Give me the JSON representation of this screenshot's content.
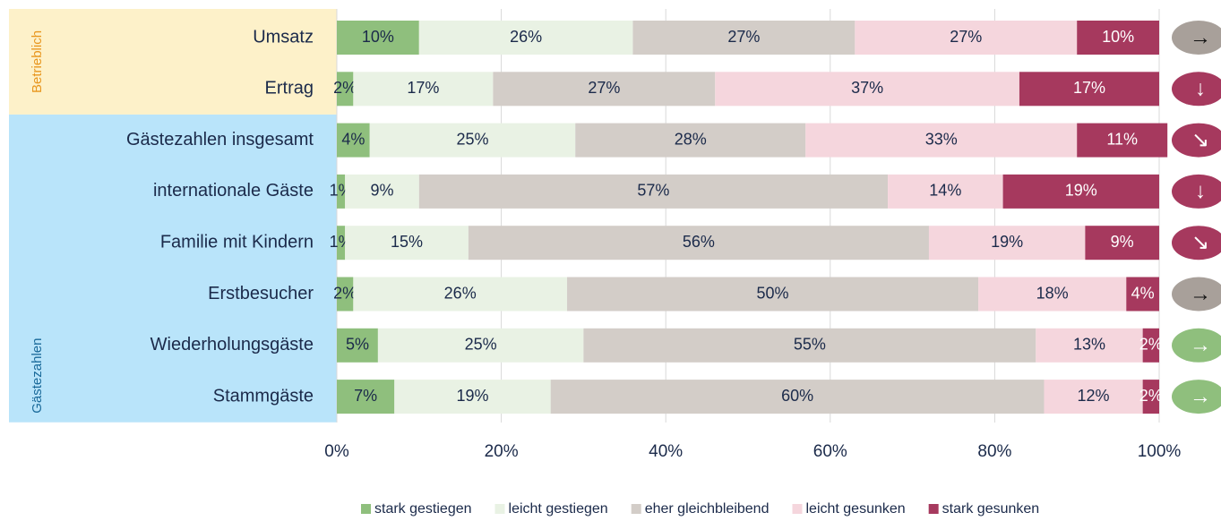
{
  "chart_data": {
    "type": "stacked_barh",
    "categories": [
      "Umsatz",
      "Ertrag",
      "Gästezahlen insgesamt",
      "internationale Gäste",
      "Familie mit Kindern",
      "Erstbesucher",
      "Wiederholungsgäste",
      "Stammgäste"
    ],
    "groups": [
      {
        "label": "Betrieblich",
        "color": "#fdf1c9",
        "text_color": "#e8961e",
        "members": [
          "Umsatz",
          "Ertrag"
        ]
      },
      {
        "label": "Gästezahlen",
        "color": "#b9e4fa",
        "text_color": "#1a6a9a",
        "members": [
          "Gästezahlen insgesamt",
          "internationale Gäste",
          "Familie mit Kindern",
          "Erstbesucher",
          "Wiederholungsgäste",
          "Stammgäste"
        ]
      }
    ],
    "series": [
      {
        "name": "stark gestiegen",
        "color": "#8fbf7d",
        "text_color": "#1b2a4a",
        "values": [
          10,
          2,
          4,
          1,
          1,
          2,
          5,
          7
        ],
        "value_labels": [
          "10%",
          "2%",
          "4%",
          "1%",
          "1%",
          "2%",
          "5%",
          "7%"
        ]
      },
      {
        "name": "leicht gestiegen",
        "color": "#e9f2e4",
        "text_color": "#1b2a4a",
        "values": [
          26,
          17,
          25,
          9,
          15,
          26,
          25,
          19
        ],
        "value_labels": [
          "26%",
          "17%",
          "25%",
          "9%",
          "15%",
          "26%",
          "25%",
          "19%"
        ]
      },
      {
        "name": "eher gleichbleibend",
        "color": "#d3cdc8",
        "text_color": "#1b2a4a",
        "values": [
          27,
          27,
          28,
          57,
          56,
          50,
          55,
          60
        ],
        "value_labels": [
          "27%",
          "27%",
          "28%",
          "57%",
          "56%",
          "50%",
          "55%",
          "60%"
        ]
      },
      {
        "name": "leicht gesunken",
        "color": "#f5d6dd",
        "text_color": "#1b2a4a",
        "values": [
          27,
          37,
          33,
          14,
          19,
          18,
          13,
          12
        ],
        "value_labels": [
          "27%",
          "37%",
          "33%",
          "14%",
          "19%",
          "18%",
          "13%",
          "12%"
        ]
      },
      {
        "name": "stark gesunken",
        "color": "#a6395e",
        "text_color": "#ffffff",
        "values": [
          10,
          17,
          11,
          19,
          9,
          4,
          2,
          2
        ],
        "value_labels": [
          "10%",
          "17%",
          "11%",
          "19%",
          "9%",
          "4%",
          "2%",
          "2%"
        ]
      }
    ],
    "trends": [
      {
        "symbol": "→",
        "color": "#a8a09a"
      },
      {
        "symbol": "↓",
        "color": "#a6395e"
      },
      {
        "symbol": "↘",
        "color": "#a6395e"
      },
      {
        "symbol": "↓",
        "color": "#a6395e"
      },
      {
        "symbol": "↘",
        "color": "#a6395e"
      },
      {
        "symbol": "→",
        "color": "#a8a09a"
      },
      {
        "symbol": "→",
        "color": "#8fbf7d"
      },
      {
        "symbol": "→",
        "color": "#8fbf7d"
      }
    ],
    "xlim": [
      0,
      100
    ],
    "xticks": [
      {
        "value": 0,
        "label": "0%"
      },
      {
        "value": 20,
        "label": "20%"
      },
      {
        "value": 40,
        "label": "40%"
      },
      {
        "value": 60,
        "label": "60%"
      },
      {
        "value": 80,
        "label": "80%"
      },
      {
        "value": 100,
        "label": "100%"
      }
    ],
    "grid": true,
    "legend": "bottom"
  }
}
